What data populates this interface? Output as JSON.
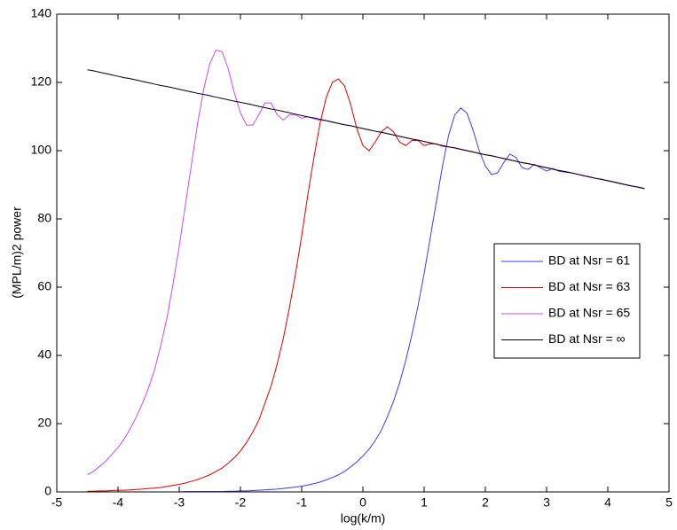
{
  "chart_data": {
    "type": "line",
    "x_label": "log(k/m)",
    "y_label": "(MPL/m)2 power",
    "xlim": [
      -5,
      5
    ],
    "xticks": [
      -5,
      -4,
      -3,
      -2,
      -1,
      0,
      1,
      2,
      3,
      4,
      5
    ],
    "ylim": [
      0,
      140
    ],
    "yticks": [
      0,
      20,
      40,
      60,
      80,
      100,
      120,
      140
    ],
    "legend": "right",
    "x": [
      -4.5,
      -4.4,
      -4.3,
      -4.2,
      -4.1,
      -4.0,
      -3.9,
      -3.8,
      -3.7,
      -3.6,
      -3.5,
      -3.4,
      -3.3,
      -3.2,
      -3.1,
      -3.0,
      -2.9,
      -2.8,
      -2.7,
      -2.6,
      -2.5,
      -2.4,
      -2.3,
      -2.2,
      -2.1,
      -2.0,
      -1.9,
      -1.8,
      -1.7,
      -1.6,
      -1.5,
      -1.4,
      -1.3,
      -1.2,
      -1.1,
      -1.0,
      -0.9,
      -0.8,
      -0.7,
      -0.6,
      -0.5,
      -0.4,
      -0.3,
      -0.2,
      -0.1,
      0,
      0.1,
      0.2,
      0.3,
      0.4,
      0.5,
      0.6,
      0.7,
      0.8,
      0.9,
      1.0,
      1.1,
      1.2,
      1.3,
      1.4,
      1.5,
      1.6,
      1.7,
      1.8,
      1.9,
      2.0,
      2.1,
      2.2,
      2.3,
      2.4,
      2.5,
      2.6,
      2.7,
      2.8,
      2.9,
      3.0,
      3.1,
      3.2,
      3.3,
      3.4,
      3.5,
      3.6,
      3.7,
      3.8,
      3.9,
      4.0,
      4.1,
      4.2,
      4.3,
      4.4,
      4.5,
      4.6
    ],
    "series": [
      {
        "name": "BD at Nsr = 61",
        "color": "#3a3aff",
        "values": [
          0,
          0,
          0,
          0,
          0,
          0,
          0,
          0,
          0,
          0,
          0,
          0,
          0,
          0,
          0,
          0,
          0.1,
          0.1,
          0.1,
          0.1,
          0.1,
          0.1,
          0.1,
          0.2,
          0.2,
          0.3,
          0.3,
          0.4,
          0.5,
          0.6,
          0.7,
          0.8,
          1.0,
          1.2,
          1.4,
          1.7,
          2.0,
          2.4,
          2.9,
          3.5,
          4.2,
          5.0,
          6.0,
          7.3,
          8.8,
          10.5,
          12.5,
          15,
          18,
          22,
          26.5,
          32,
          38.5,
          46,
          54.5,
          64,
          74.5,
          85,
          95.5,
          104.5,
          110.5,
          112.5,
          111,
          106,
          100,
          95.5,
          93,
          93.5,
          96.5,
          99,
          98,
          95,
          94.5,
          96,
          95,
          94,
          94.8,
          94,
          93.7,
          93.5,
          93.1,
          92.7,
          92.3,
          91.9,
          91.6,
          91.2,
          90.8,
          90.4,
          90.0,
          89.6,
          89.3,
          88.9
        ]
      },
      {
        "name": "BD at Nsr = 63",
        "color": "#e00000",
        "values": [
          0.2,
          0.2,
          0.3,
          0.3,
          0.4,
          0.5,
          0.5,
          0.6,
          0.7,
          0.8,
          1.0,
          1.1,
          1.3,
          1.6,
          1.9,
          2.2,
          2.6,
          3.1,
          3.6,
          4.3,
          5.0,
          6.0,
          7.0,
          8.4,
          10,
          12,
          14.5,
          17.5,
          21,
          26,
          31,
          37.5,
          45,
          54,
          64,
          75,
          87,
          98,
          108,
          115.5,
          120,
          121,
          119,
          113.5,
          106.5,
          101.5,
          100,
          102.5,
          105.5,
          107,
          105.5,
          102.5,
          101.5,
          103,
          103,
          101.5,
          102,
          102,
          101.3,
          101.1,
          100.8,
          100.4,
          100.0,
          99.6,
          99.2,
          98.8,
          98.5,
          98.1,
          97.7,
          97.3,
          96.9,
          96.5,
          96.2,
          95.8,
          95.4,
          95.0,
          94.6,
          94.2,
          93.9,
          93.5,
          93.1,
          92.7,
          92.3,
          91.9,
          91.6,
          91.2,
          90.8,
          90.4,
          90.0,
          89.6,
          89.3,
          88.9
        ]
      },
      {
        "name": "BD at Nsr = 65",
        "color": "#c848ff",
        "values": [
          5,
          6,
          7.5,
          9,
          11,
          13,
          15.5,
          18.5,
          22,
          26,
          30.5,
          36,
          43,
          51,
          61,
          72,
          84,
          96,
          108,
          118,
          125.5,
          129.5,
          129,
          124,
          117,
          111,
          107.5,
          107.5,
          110.5,
          114,
          114,
          110.5,
          109,
          110.5,
          110.5,
          109.5,
          110,
          109.3,
          108.9,
          108.8,
          108.3,
          108.0,
          107.6,
          107.3,
          106.9,
          106.5,
          106.1,
          105.7,
          105.4,
          105.0,
          104.6,
          104.2,
          103.8,
          103.4,
          103.1,
          102.7,
          102.3,
          101.9,
          101.5,
          101.1,
          100.8,
          100.4,
          100.0,
          99.6,
          99.2,
          98.8,
          98.5,
          98.1,
          97.7,
          97.3,
          96.9,
          96.5,
          96.2,
          95.8,
          95.4,
          95.0,
          94.6,
          94.2,
          93.9,
          93.5,
          93.1,
          92.7,
          92.3,
          91.9,
          91.6,
          91.2,
          90.8,
          90.4,
          90.0,
          89.6,
          89.3,
          88.9
        ]
      },
      {
        "name": "BD at Nsr = ∞",
        "color": "#000000",
        "values": [
          123.7,
          123.4,
          123.0,
          122.6,
          122.2,
          121.8,
          121.4,
          121.1,
          120.7,
          120.3,
          119.9,
          119.5,
          119.1,
          118.8,
          118.4,
          118.0,
          117.6,
          117.2,
          116.8,
          116.5,
          116.1,
          115.7,
          115.3,
          114.9,
          114.5,
          114.2,
          113.8,
          113.4,
          113.0,
          112.6,
          112.2,
          111.9,
          111.5,
          111.1,
          110.7,
          110.3,
          109.9,
          109.6,
          109.2,
          108.8,
          108.4,
          108.0,
          107.6,
          107.3,
          106.9,
          106.5,
          106.1,
          105.7,
          105.4,
          105.0,
          104.6,
          104.2,
          103.8,
          103.4,
          103.1,
          102.7,
          102.3,
          101.9,
          101.5,
          101.1,
          100.8,
          100.4,
          100.0,
          99.6,
          99.2,
          98.8,
          98.5,
          98.1,
          97.7,
          97.3,
          96.9,
          96.5,
          96.2,
          95.8,
          95.4,
          95.0,
          94.6,
          94.2,
          93.9,
          93.5,
          93.1,
          92.7,
          92.3,
          91.9,
          91.6,
          91.2,
          90.8,
          90.4,
          90.0,
          89.6,
          89.3,
          88.9
        ]
      }
    ]
  }
}
